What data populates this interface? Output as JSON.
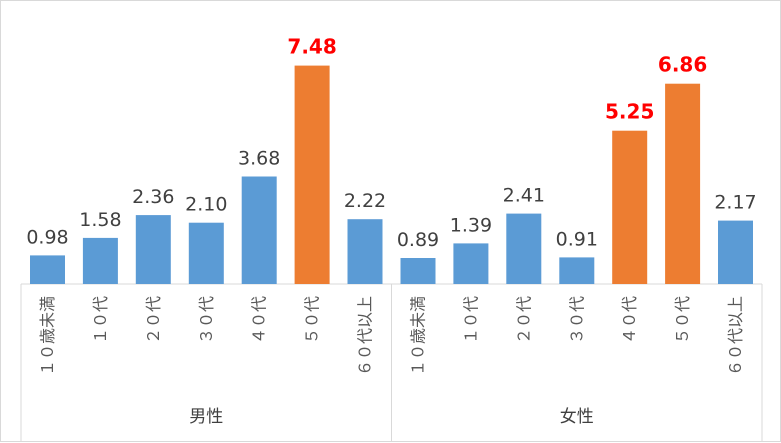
{
  "chart_data": {
    "type": "bar",
    "groups": [
      {
        "name": "男性",
        "categories": [
          "１０歳未満",
          "１０代",
          "２０代",
          "３０代",
          "４０代",
          "５０代",
          "６０代以上"
        ],
        "values": [
          0.98,
          1.58,
          2.36,
          2.1,
          3.68,
          7.48,
          2.22
        ],
        "value_labels": [
          "0.98",
          "1.58",
          "2.36",
          "2.10",
          "3.68",
          "7.48",
          "2.22"
        ],
        "highlight": [
          false,
          false,
          false,
          false,
          false,
          true,
          false
        ]
      },
      {
        "name": "女性",
        "categories": [
          "１０歳未満",
          "１０代",
          "２０代",
          "３０代",
          "４０代",
          "５０代",
          "６０代以上"
        ],
        "values": [
          0.89,
          1.39,
          2.41,
          0.91,
          5.25,
          6.86,
          2.17
        ],
        "value_labels": [
          "0.89",
          "1.39",
          "2.41",
          "0.91",
          "5.25",
          "6.86",
          "2.17"
        ],
        "highlight": [
          false,
          false,
          false,
          false,
          true,
          true,
          false
        ]
      }
    ],
    "colors": {
      "normal": "#5b9bd5",
      "highlight": "#ed7d31",
      "highlight_label": "#ff0000"
    },
    "ylim": [
      0,
      8
    ],
    "grid": false,
    "legend": "none"
  }
}
